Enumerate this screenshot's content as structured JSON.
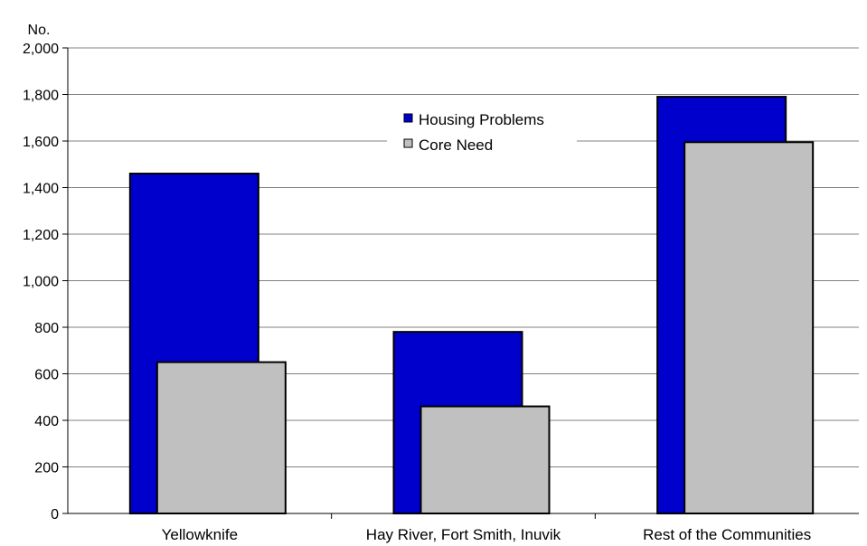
{
  "chart_data": {
    "type": "bar",
    "title": "",
    "ylabel": "No.",
    "xlabel": "",
    "ylim": [
      0,
      2000
    ],
    "yticks": [
      0,
      200,
      400,
      600,
      800,
      1000,
      1200,
      1400,
      1600,
      1800,
      2000
    ],
    "ytick_labels": [
      "0",
      "200",
      "400",
      "600",
      "800",
      "1,000",
      "1,200",
      "1,400",
      "1,600",
      "1,800",
      "2,000"
    ],
    "categories": [
      "Yellowknife",
      "Hay River, Fort Smith, Inuvik",
      "Rest of the Communities"
    ],
    "series": [
      {
        "name": "Housing Problems",
        "values": [
          1460,
          780,
          1790
        ],
        "color": "#0000CC"
      },
      {
        "name": "Core Need",
        "values": [
          650,
          460,
          1595
        ],
        "color": "#C0C0C0"
      }
    ],
    "grid": true,
    "legend_position": "top-center",
    "overlapping_bars": true
  }
}
